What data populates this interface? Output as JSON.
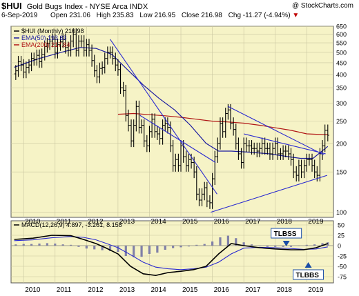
{
  "header": {
    "symbol": "$HUI",
    "name": "Gold Bugs Index - NYSE Arca INDX",
    "brand": "@ StockCharts.com",
    "date": "6-Sep-2019",
    "open_label": "Open",
    "open": "231.06",
    "high_label": "High",
    "high": "235.83",
    "low_label": "Low",
    "low": "216.95",
    "close_label": "Close",
    "close": "216.98",
    "chg_label": "Chg",
    "chg": "-11.27 (-4.94%)"
  },
  "colors": {
    "panel_bg": "#f6f3c6",
    "price_bar": "#000000",
    "ema50": "#1a1aa0",
    "ema200": "#b01414",
    "trendline": "#2a2ad0",
    "macd": "#000000",
    "signal": "#2a2ad0",
    "histogram": "#8080a8",
    "callout": "#1a4da6"
  },
  "chart_data": [
    {
      "type": "bar",
      "subtype": "ohlc-monthly",
      "legend": [
        {
          "key": "price",
          "label": "$HUI (Monthly) 216.98"
        },
        {
          "key": "ema50",
          "label": "EMA(50) 193.83"
        },
        {
          "key": "ema200",
          "label": "EMA(200) 217.84"
        }
      ],
      "y_scale": "log",
      "ylim": [
        95,
        650
      ],
      "y_ticks": [
        650,
        600,
        550,
        500,
        450,
        400,
        350,
        300,
        250,
        200,
        150,
        100
      ],
      "x_ticks": [
        "2010",
        "2011",
        "2012",
        "2013",
        "2014",
        "2015",
        "2016",
        "2017",
        "2018",
        "2019"
      ],
      "x_range": [
        2009.6,
        2019.85
      ],
      "grid": true,
      "price_closes": [
        [
          2009.75,
          415
        ],
        [
          2009.83,
          455
        ],
        [
          2009.92,
          440
        ],
        [
          2010.0,
          410
        ],
        [
          2010.08,
          430
        ],
        [
          2010.17,
          440
        ],
        [
          2010.25,
          470
        ],
        [
          2010.33,
          465
        ],
        [
          2010.42,
          485
        ],
        [
          2010.5,
          455
        ],
        [
          2010.58,
          490
        ],
        [
          2010.67,
          530
        ],
        [
          2010.75,
          545
        ],
        [
          2010.83,
          560
        ],
        [
          2010.92,
          570
        ],
        [
          2011.0,
          500
        ],
        [
          2011.08,
          540
        ],
        [
          2011.17,
          555
        ],
        [
          2011.25,
          570
        ],
        [
          2011.33,
          525
        ],
        [
          2011.42,
          510
        ],
        [
          2011.5,
          560
        ],
        [
          2011.58,
          600
        ],
        [
          2011.67,
          510
        ],
        [
          2011.75,
          560
        ],
        [
          2011.83,
          560
        ],
        [
          2011.92,
          510
        ],
        [
          2012.0,
          540
        ],
        [
          2012.08,
          510
        ],
        [
          2012.17,
          460
        ],
        [
          2012.25,
          415
        ],
        [
          2012.33,
          390
        ],
        [
          2012.42,
          425
        ],
        [
          2012.5,
          430
        ],
        [
          2012.58,
          470
        ],
        [
          2012.67,
          500
        ],
        [
          2012.75,
          500
        ],
        [
          2012.83,
          470
        ],
        [
          2012.92,
          440
        ],
        [
          2013.0,
          420
        ],
        [
          2013.08,
          350
        ],
        [
          2013.17,
          340
        ],
        [
          2013.25,
          265
        ],
        [
          2013.33,
          240
        ],
        [
          2013.42,
          205
        ],
        [
          2013.5,
          240
        ],
        [
          2013.58,
          290
        ],
        [
          2013.67,
          235
        ],
        [
          2013.75,
          240
        ],
        [
          2013.83,
          205
        ],
        [
          2013.92,
          195
        ],
        [
          2014.0,
          225
        ],
        [
          2014.08,
          255
        ],
        [
          2014.17,
          225
        ],
        [
          2014.25,
          220
        ],
        [
          2014.33,
          210
        ],
        [
          2014.42,
          240
        ],
        [
          2014.5,
          245
        ],
        [
          2014.58,
          235
        ],
        [
          2014.67,
          195
        ],
        [
          2014.75,
          160
        ],
        [
          2014.83,
          170
        ],
        [
          2014.92,
          160
        ],
        [
          2015.0,
          195
        ],
        [
          2015.08,
          175
        ],
        [
          2015.17,
          160
        ],
        [
          2015.25,
          170
        ],
        [
          2015.33,
          165
        ],
        [
          2015.42,
          150
        ],
        [
          2015.5,
          120
        ],
        [
          2015.58,
          113
        ],
        [
          2015.67,
          120
        ],
        [
          2015.75,
          128
        ],
        [
          2015.83,
          112
        ],
        [
          2015.92,
          110
        ],
        [
          2016.0,
          140
        ],
        [
          2016.08,
          175
        ],
        [
          2016.17,
          200
        ],
        [
          2016.25,
          245
        ],
        [
          2016.33,
          225
        ],
        [
          2016.42,
          270
        ],
        [
          2016.5,
          280
        ],
        [
          2016.58,
          245
        ],
        [
          2016.67,
          230
        ],
        [
          2016.75,
          200
        ],
        [
          2016.83,
          180
        ],
        [
          2016.92,
          165
        ],
        [
          2017.0,
          200
        ],
        [
          2017.08,
          195
        ],
        [
          2017.17,
          195
        ],
        [
          2017.25,
          190
        ],
        [
          2017.33,
          190
        ],
        [
          2017.42,
          185
        ],
        [
          2017.5,
          190
        ],
        [
          2017.58,
          200
        ],
        [
          2017.67,
          190
        ],
        [
          2017.75,
          190
        ],
        [
          2017.83,
          180
        ],
        [
          2017.92,
          190
        ],
        [
          2018.0,
          200
        ],
        [
          2018.08,
          180
        ],
        [
          2018.17,
          180
        ],
        [
          2018.25,
          185
        ],
        [
          2018.33,
          185
        ],
        [
          2018.42,
          180
        ],
        [
          2018.5,
          170
        ],
        [
          2018.58,
          150
        ],
        [
          2018.67,
          145
        ],
        [
          2018.75,
          160
        ],
        [
          2018.83,
          150
        ],
        [
          2018.92,
          160
        ],
        [
          2019.0,
          170
        ],
        [
          2019.08,
          170
        ],
        [
          2019.17,
          160
        ],
        [
          2019.25,
          150
        ],
        [
          2019.33,
          145
        ],
        [
          2019.42,
          180
        ],
        [
          2019.5,
          195
        ],
        [
          2019.58,
          228
        ],
        [
          2019.67,
          217
        ]
      ],
      "ema50": [
        [
          2009.7,
          430
        ],
        [
          2010.5,
          470
        ],
        [
          2011.2,
          500
        ],
        [
          2011.8,
          525
        ],
        [
          2012.3,
          520
        ],
        [
          2012.8,
          490
        ],
        [
          2013.3,
          420
        ],
        [
          2013.8,
          360
        ],
        [
          2014.3,
          315
        ],
        [
          2014.8,
          280
        ],
        [
          2015.3,
          240
        ],
        [
          2015.8,
          200
        ],
        [
          2016.2,
          185
        ],
        [
          2016.6,
          185
        ],
        [
          2017.2,
          183
        ],
        [
          2017.8,
          180
        ],
        [
          2018.4,
          175
        ],
        [
          2018.8,
          172
        ],
        [
          2019.2,
          172
        ],
        [
          2019.67,
          194
        ]
      ],
      "ema200": [
        [
          2013.0,
          268
        ],
        [
          2013.5,
          270
        ],
        [
          2014.0,
          267
        ],
        [
          2014.5,
          264
        ],
        [
          2015.0,
          260
        ],
        [
          2015.5,
          255
        ],
        [
          2016.0,
          250
        ],
        [
          2016.5,
          248
        ],
        [
          2017.0,
          245
        ],
        [
          2017.5,
          240
        ],
        [
          2018.0,
          234
        ],
        [
          2018.5,
          228
        ],
        [
          2019.0,
          220
        ],
        [
          2019.67,
          218
        ]
      ],
      "trendlines": [
        [
          [
            2012.75,
            570
          ],
          [
            2016.15,
            120
          ]
        ],
        [
          [
            2013.7,
            265
          ],
          [
            2016.1,
            165
          ]
        ],
        [
          [
            2016.5,
            290
          ],
          [
            2019.55,
            178
          ]
        ],
        [
          [
            2017.0,
            220
          ],
          [
            2019.6,
            180
          ]
        ],
        [
          [
            2015.95,
            100
          ],
          [
            2019.65,
            145
          ]
        ]
      ]
    },
    {
      "type": "line",
      "subtype": "macd",
      "legend": [
        {
          "key": "macd",
          "label": "MACD(12,26,9) 4.897, -3.261, 8.158"
        }
      ],
      "ylim": [
        -90,
        60
      ],
      "y_ticks": [
        50,
        25,
        0,
        -25,
        -50,
        -75
      ],
      "x_ticks": [
        "2010",
        "2011",
        "2012",
        "2013",
        "2014",
        "2015",
        "2016",
        "2017",
        "2018",
        "2019"
      ],
      "annotations": [
        "TLBSS",
        "TLBBS"
      ],
      "macd": [
        [
          2009.7,
          15
        ],
        [
          2010.3,
          18
        ],
        [
          2010.9,
          25
        ],
        [
          2011.5,
          24
        ],
        [
          2011.9,
          15
        ],
        [
          2012.3,
          5
        ],
        [
          2012.6,
          -5
        ],
        [
          2013.0,
          -20
        ],
        [
          2013.4,
          -50
        ],
        [
          2013.8,
          -68
        ],
        [
          2014.2,
          -72
        ],
        [
          2014.6,
          -65
        ],
        [
          2015.0,
          -62
        ],
        [
          2015.4,
          -58
        ],
        [
          2015.8,
          -50
        ],
        [
          2016.2,
          -20
        ],
        [
          2016.6,
          5
        ],
        [
          2017.0,
          0
        ],
        [
          2017.5,
          -5
        ],
        [
          2018.0,
          -8
        ],
        [
          2018.5,
          -10
        ],
        [
          2018.9,
          -10
        ],
        [
          2019.3,
          -5
        ],
        [
          2019.67,
          5
        ]
      ],
      "signal": [
        [
          2009.7,
          12
        ],
        [
          2010.3,
          14
        ],
        [
          2010.9,
          19
        ],
        [
          2011.5,
          22
        ],
        [
          2011.9,
          20
        ],
        [
          2012.3,
          14
        ],
        [
          2012.6,
          6
        ],
        [
          2013.0,
          -5
        ],
        [
          2013.4,
          -22
        ],
        [
          2013.8,
          -40
        ],
        [
          2014.2,
          -52
        ],
        [
          2014.6,
          -56
        ],
        [
          2015.0,
          -58
        ],
        [
          2015.4,
          -56
        ],
        [
          2015.8,
          -52
        ],
        [
          2016.2,
          -40
        ],
        [
          2016.6,
          -20
        ],
        [
          2017.0,
          -6
        ],
        [
          2017.5,
          -4
        ],
        [
          2018.0,
          -5
        ],
        [
          2018.5,
          -7
        ],
        [
          2018.9,
          -9
        ],
        [
          2019.3,
          -8
        ],
        [
          2019.67,
          -3
        ]
      ],
      "histogram": [
        [
          2009.75,
          3
        ],
        [
          2010.0,
          4
        ],
        [
          2010.25,
          4
        ],
        [
          2010.5,
          5
        ],
        [
          2010.75,
          6
        ],
        [
          2011.0,
          5
        ],
        [
          2011.25,
          3
        ],
        [
          2011.5,
          2
        ],
        [
          2011.75,
          -3
        ],
        [
          2012.0,
          -7
        ],
        [
          2012.25,
          -9
        ],
        [
          2012.5,
          -11
        ],
        [
          2012.75,
          -13
        ],
        [
          2013.0,
          -15
        ],
        [
          2013.25,
          -25
        ],
        [
          2013.5,
          -28
        ],
        [
          2013.75,
          -27
        ],
        [
          2014.0,
          -20
        ],
        [
          2014.25,
          -17
        ],
        [
          2014.5,
          -10
        ],
        [
          2014.75,
          -6
        ],
        [
          2015.0,
          -4
        ],
        [
          2015.25,
          -2
        ],
        [
          2015.5,
          2
        ],
        [
          2015.75,
          4
        ],
        [
          2016.0,
          10
        ],
        [
          2016.25,
          20
        ],
        [
          2016.5,
          24
        ],
        [
          2016.75,
          18
        ],
        [
          2017.0,
          8
        ],
        [
          2017.25,
          3
        ],
        [
          2017.5,
          -1
        ],
        [
          2017.75,
          -3
        ],
        [
          2018.0,
          -3
        ],
        [
          2018.25,
          -3
        ],
        [
          2018.5,
          -3
        ],
        [
          2018.75,
          -1
        ],
        [
          2019.0,
          2
        ],
        [
          2019.25,
          3
        ],
        [
          2019.5,
          6
        ],
        [
          2019.67,
          8
        ]
      ]
    }
  ]
}
